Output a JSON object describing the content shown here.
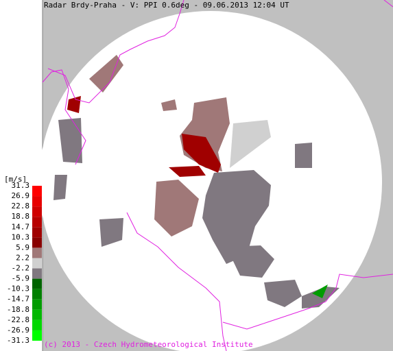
{
  "header": {
    "title": "Radar Brdy-Praha - V: PPI  0.6deg - 09.06.2013 12:04 UT"
  },
  "scale": {
    "unit": "[m/s]",
    "labels": [
      "31.3",
      "26.9",
      "22.8",
      "18.8",
      "14.7",
      "10.3",
      "5.9",
      "2.2",
      "-2.2",
      "-5.9",
      "-10.3",
      "-14.7",
      "-18.8",
      "-22.8",
      "-26.9",
      "-31.3"
    ],
    "colors": [
      "#ff0000",
      "#e80000",
      "#d00000",
      "#b80000",
      "#a00000",
      "#880000",
      "#a07878",
      "#d0d0d0",
      "#807880",
      "#006400",
      "#008000",
      "#009c00",
      "#00b800",
      "#00d800",
      "#00ff00"
    ]
  },
  "footer": {
    "copyright": "(c) 2013 - Czech Hydrometeorological Institute"
  }
}
